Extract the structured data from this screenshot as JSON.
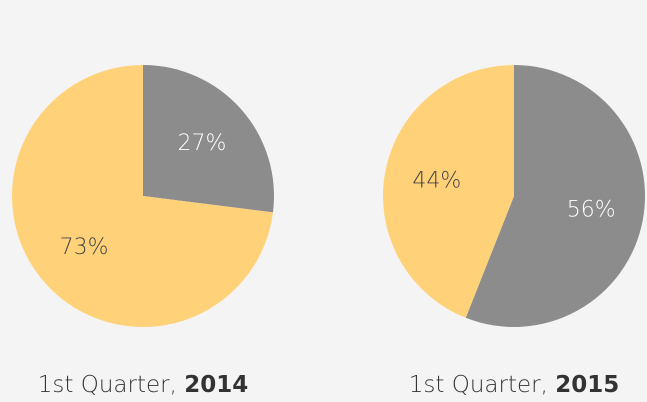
{
  "chart_data": [
    {
      "type": "pie",
      "caption": "1st Quarter,",
      "caption_bold": "2014",
      "values": [
        27,
        73
      ],
      "value_labels": [
        "27%",
        "73%"
      ],
      "colors": [
        "#8c8c8c",
        "#ffd27a"
      ]
    },
    {
      "type": "pie",
      "caption": "1st Quarter,",
      "caption_bold": "2015",
      "values": [
        56,
        44
      ],
      "value_labels": [
        "56%",
        "44%"
      ],
      "colors": [
        "#8c8c8c",
        "#ffd27a"
      ]
    }
  ]
}
